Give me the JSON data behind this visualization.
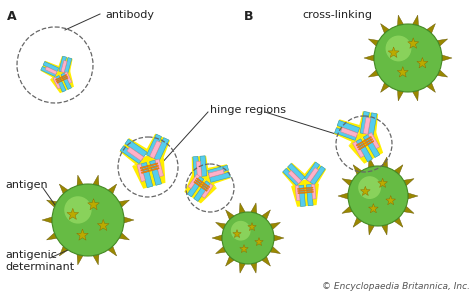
{
  "bg_color": "#ffffff",
  "label_A": "A",
  "label_B": "B",
  "label_antibody": "antibody",
  "label_hinge": "hinge regions",
  "label_crosslink": "cross-linking",
  "label_antigen": "antigen",
  "label_antigenic": "antigenic\ndeterminant",
  "label_britannica": "© Encyclopaedia Britannica, Inc.",
  "color_yellow": "#FFEE00",
  "color_cyan": "#55CCEE",
  "color_pink": "#FFB0C8",
  "color_green_mid": "#66BB44",
  "color_green_light": "#99DD66",
  "color_green_dark": "#448822",
  "color_olive": "#9B9200",
  "color_spike": "#888800",
  "font_size_label": 8,
  "font_size_letter": 9,
  "font_size_small": 6.5
}
